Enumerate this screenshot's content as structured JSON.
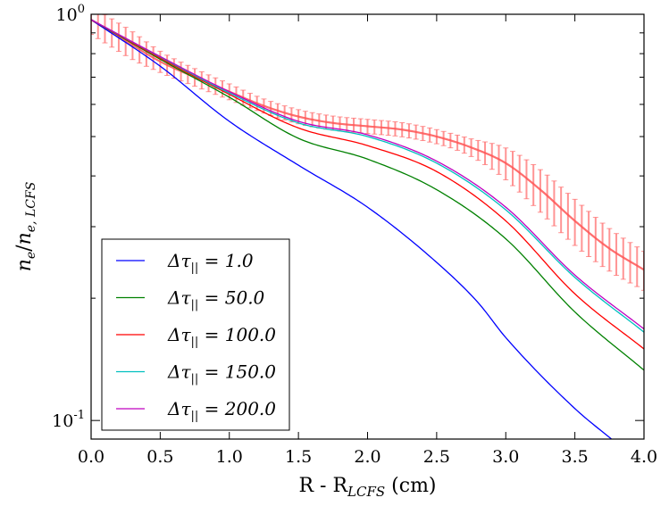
{
  "chart_data": {
    "type": "line",
    "xlabel": {
      "main": "R - R",
      "sub": "LCFS",
      "unit": " (cm)"
    },
    "ylabel": {
      "pre": "n",
      "pre_sub": "e",
      "slash": "/",
      "post": "n",
      "post_sub": "e, LCFS"
    },
    "xlim": [
      0.0,
      4.0
    ],
    "ylim": [
      0.09,
      1.0
    ],
    "yscale": "log",
    "x_ticks": [
      0.0,
      0.5,
      1.0,
      1.5,
      2.0,
      2.5,
      3.0,
      3.5,
      4.0
    ],
    "x_tick_labels": [
      "0.0",
      "0.5",
      "1.0",
      "1.5",
      "2.0",
      "2.5",
      "3.0",
      "3.5",
      "4.0"
    ],
    "y_major_ticks": [
      {
        "value": 1.0,
        "base": "10",
        "exp": "0"
      },
      {
        "value": 0.1,
        "base": "10",
        "exp": "-1"
      }
    ],
    "y_minor_ticks": [
      0.2,
      0.3,
      0.4,
      0.5,
      0.6,
      0.7,
      0.8,
      0.9
    ],
    "legend": {
      "position": "lower-left"
    },
    "series": [
      {
        "name": "Δτ|| = 1.0",
        "label_main": "Δτ",
        "label_sub": "||",
        "label_val": " = 1.0",
        "color": "#0000ff",
        "x": [
          0.0,
          0.5,
          1.0,
          1.5,
          2.0,
          2.5,
          2.8,
          3.0,
          3.5,
          3.8
        ],
        "y": [
          0.97,
          0.745,
          0.545,
          0.425,
          0.335,
          0.245,
          0.195,
          0.16,
          0.107,
          0.088
        ]
      },
      {
        "name": "Δτ|| = 50.0",
        "label_main": "Δτ",
        "label_sub": "||",
        "label_val": " = 50.0",
        "color": "#008000",
        "x": [
          0.0,
          0.5,
          1.0,
          1.5,
          2.0,
          2.5,
          3.0,
          3.5,
          4.0
        ],
        "y": [
          0.97,
          0.775,
          0.625,
          0.495,
          0.44,
          0.37,
          0.28,
          0.185,
          0.133
        ]
      },
      {
        "name": "Δτ|| = 100.0",
        "label_main": "Δτ",
        "label_sub": "||",
        "label_val": " = 100.0",
        "color": "#ff0000",
        "x": [
          0.0,
          0.5,
          1.0,
          1.5,
          2.0,
          2.5,
          3.0,
          3.5,
          4.0
        ],
        "y": [
          0.97,
          0.78,
          0.635,
          0.525,
          0.475,
          0.41,
          0.31,
          0.205,
          0.15
        ]
      },
      {
        "name": "Δτ|| = 150.0",
        "label_main": "Δτ",
        "label_sub": "||",
        "label_val": " = 150.0",
        "color": "#00bfbf",
        "x": [
          0.0,
          0.5,
          1.0,
          1.5,
          2.0,
          2.5,
          3.0,
          3.5,
          4.0
        ],
        "y": [
          0.97,
          0.785,
          0.64,
          0.54,
          0.5,
          0.43,
          0.33,
          0.225,
          0.165
        ]
      },
      {
        "name": "Δτ|| = 200.0",
        "label_main": "Δτ",
        "label_sub": "||",
        "label_val": " = 200.0",
        "color": "#bf00bf",
        "x": [
          0.0,
          0.5,
          1.0,
          1.5,
          2.0,
          2.5,
          3.0,
          3.5,
          4.0
        ],
        "y": [
          0.97,
          0.787,
          0.645,
          0.545,
          0.505,
          0.435,
          0.335,
          0.228,
          0.168
        ]
      }
    ],
    "experiment": {
      "color": "#ff0000",
      "x": [
        0.0,
        0.25,
        0.5,
        0.75,
        1.0,
        1.25,
        1.5,
        1.75,
        2.0,
        2.25,
        2.5,
        2.75,
        3.0,
        3.25,
        3.5,
        3.75,
        4.0
      ],
      "y": [
        0.97,
        0.86,
        0.765,
        0.7,
        0.645,
        0.595,
        0.56,
        0.54,
        0.53,
        0.52,
        0.5,
        0.47,
        0.43,
        0.37,
        0.31,
        0.265,
        0.235
      ],
      "err_frac": [
        0.08,
        0.08,
        0.06,
        0.05,
        0.045,
        0.04,
        0.04,
        0.04,
        0.04,
        0.04,
        0.04,
        0.05,
        0.09,
        0.12,
        0.13,
        0.12,
        0.11
      ]
    }
  }
}
